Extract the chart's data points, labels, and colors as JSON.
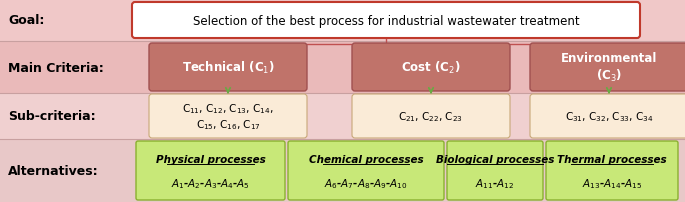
{
  "bg_color": "#f5d0d0",
  "goal_text": "Selection of the best process for industrial wastewater treatment",
  "goal_label": "Goal:",
  "criteria_label": "Main Criteria:",
  "subcriteria_label": "Sub-criteria:",
  "alt_label": "Alternatives:",
  "criteria_names": [
    "Technical (C$_1$)",
    "Cost (C$_2$)",
    "Environmental\n(C$_3$)"
  ],
  "sub_texts": [
    "C$_{11}$, C$_{12}$, C$_{13}$, C$_{14}$,\nC$_{15}$, C$_{16}$, C$_{17}$",
    "C$_{21}$, C$_{22}$, C$_{23}$",
    "C$_{31}$, C$_{32}$, C$_{33}$, C$_{34}$"
  ],
  "alt_titles": [
    "Physical processes",
    "Chemical processes",
    "Biological processes",
    "Thermal processes"
  ],
  "alt_items": [
    "$A_1$-$A_2$-$A_3$-$A_4$-$A_5$",
    "$A_6$-$A_7$-$A_8$-$A_9$-$A_{10}$",
    "$A_{11}$-$A_{12}$",
    "$A_{13}$-$A_{14}$-$A_{15}$"
  ],
  "row_bg_colors": [
    "#f0c8c8",
    "#eababa",
    "#f0d0d0",
    "#e8c8c8"
  ],
  "criteria_box_color": "#c0736a",
  "criteria_edge_color": "#a05050",
  "criteria_text_color": "#ffffff",
  "goal_box_color": "#ffffff",
  "goal_border_color": "#c0392b",
  "sub_box_color": "#faebd7",
  "sub_edge_color": "#c8a878",
  "alt_box_color": "#c8e878",
  "alt_edge_color": "#8ab030",
  "connector_color": "#c05050",
  "arrow_color": "#6aaa44",
  "sep_line_color": "#c8a0a0"
}
